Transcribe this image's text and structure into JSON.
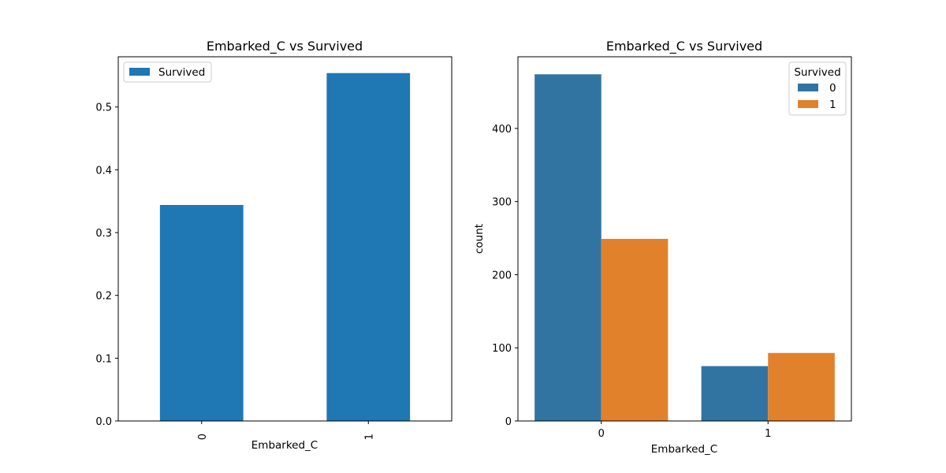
{
  "chart_data": [
    {
      "type": "bar",
      "title": "Embarked_C vs Survived",
      "xlabel": "Embarked_C",
      "ylabel": "",
      "categories": [
        "0",
        "1"
      ],
      "series": [
        {
          "name": "Survived",
          "values": [
            0.344,
            0.554
          ],
          "color": "#1f77b4"
        }
      ],
      "ylim": [
        0,
        0.58
      ],
      "yticks": [
        "0.0",
        "0.1",
        "0.2",
        "0.3",
        "0.4",
        "0.5"
      ],
      "ytick_values": [
        0,
        0.1,
        0.2,
        0.3,
        0.4,
        0.5
      ],
      "legend": "top-left",
      "grid": false
    },
    {
      "type": "bar",
      "title": "Embarked_C vs Survived",
      "xlabel": "Embarked_C",
      "ylabel": "count",
      "categories": [
        "0",
        "1"
      ],
      "legend_title": "Survived",
      "series": [
        {
          "name": "0",
          "values": [
            474,
            75
          ],
          "color": "#3274a1"
        },
        {
          "name": "1",
          "values": [
            249,
            93
          ],
          "color": "#e1812c"
        }
      ],
      "ylim": [
        0,
        498
      ],
      "yticks": [
        "0",
        "100",
        "200",
        "300",
        "400"
      ],
      "ytick_values": [
        0,
        100,
        200,
        300,
        400
      ],
      "legend": "top-right",
      "grid": false
    }
  ]
}
